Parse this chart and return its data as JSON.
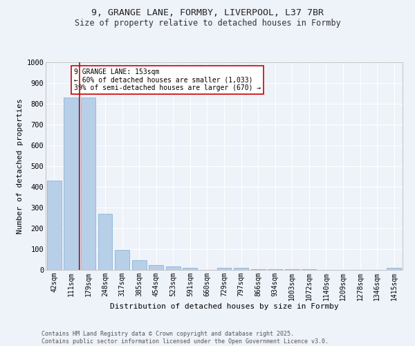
{
  "title_line1": "9, GRANGE LANE, FORMBY, LIVERPOOL, L37 7BR",
  "title_line2": "Size of property relative to detached houses in Formby",
  "xlabel": "Distribution of detached houses by size in Formby",
  "ylabel": "Number of detached properties",
  "categories": [
    "42sqm",
    "111sqm",
    "179sqm",
    "248sqm",
    "317sqm",
    "385sqm",
    "454sqm",
    "523sqm",
    "591sqm",
    "660sqm",
    "729sqm",
    "797sqm",
    "866sqm",
    "934sqm",
    "1003sqm",
    "1072sqm",
    "1140sqm",
    "1209sqm",
    "1278sqm",
    "1346sqm",
    "1415sqm"
  ],
  "values": [
    430,
    830,
    830,
    270,
    97,
    46,
    22,
    16,
    9,
    0,
    11,
    9,
    5,
    5,
    3,
    2,
    1,
    1,
    0,
    0,
    9
  ],
  "bar_color": "#b8cfe8",
  "bar_edge_color": "#7aadd4",
  "red_line_index": 1.5,
  "annotation_text": "9 GRANGE LANE: 153sqm\n← 60% of detached houses are smaller (1,033)\n39% of semi-detached houses are larger (670) →",
  "annotation_box_color": "#ffffff",
  "annotation_border_color": "#cc0000",
  "ylim": [
    0,
    1000
  ],
  "yticks": [
    0,
    100,
    200,
    300,
    400,
    500,
    600,
    700,
    800,
    900,
    1000
  ],
  "footer_line1": "Contains HM Land Registry data © Crown copyright and database right 2025.",
  "footer_line2": "Contains public sector information licensed under the Open Government Licence v3.0.",
  "bg_color": "#eef2f9",
  "plot_bg_color": "#eef2f9",
  "grid_color": "#ffffff",
  "title_fontsize": 9.5,
  "subtitle_fontsize": 8.5,
  "axis_label_fontsize": 8,
  "tick_fontsize": 7,
  "annotation_fontsize": 7,
  "footer_fontsize": 6
}
